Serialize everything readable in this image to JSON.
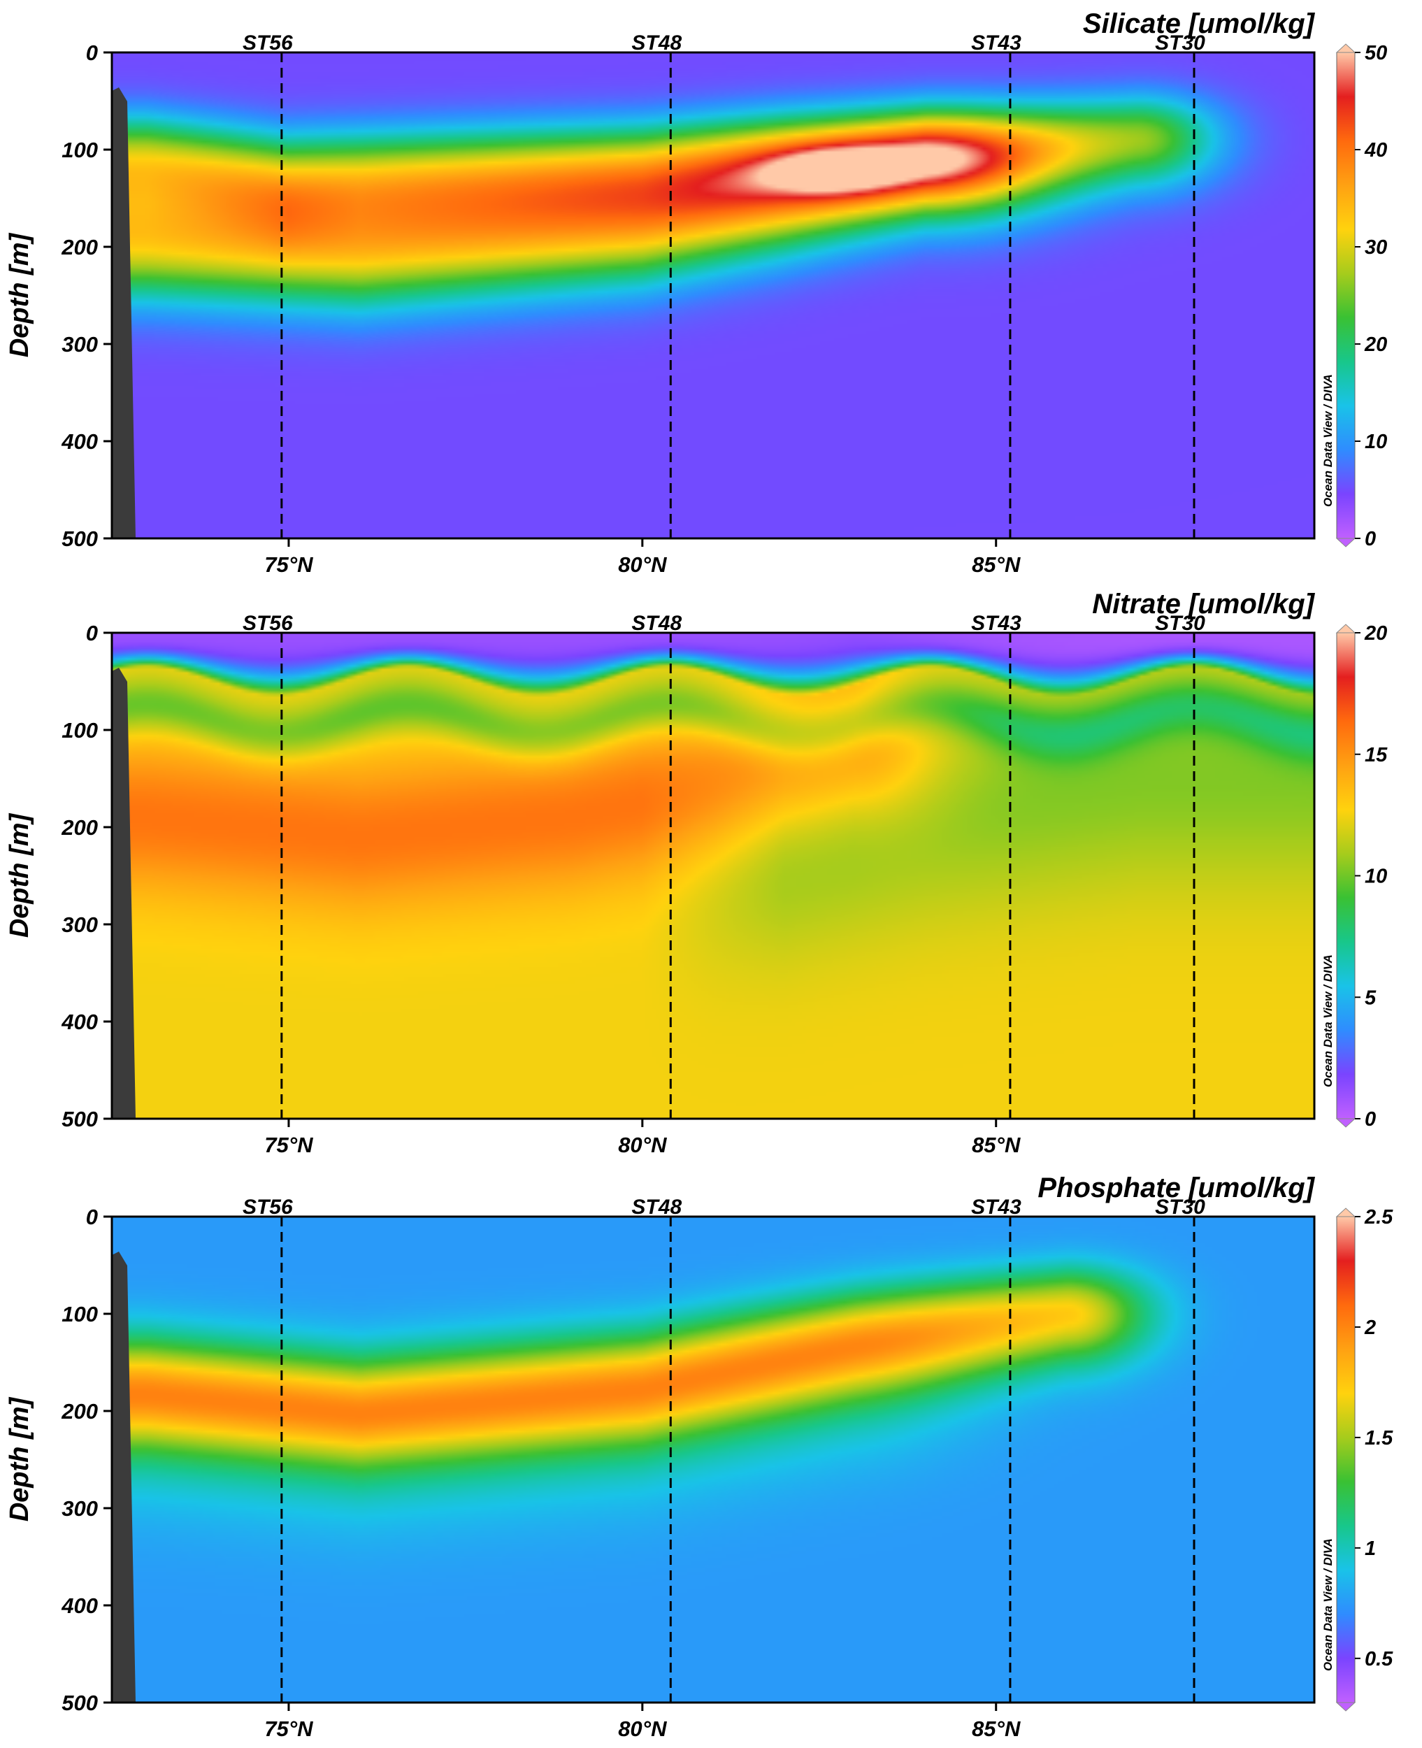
{
  "chart_data": [
    {
      "type": "heatmap",
      "title": "Silicate [umol/kg]",
      "ylabel": "Depth [m]",
      "ylim": [
        500,
        0
      ],
      "xlim": [
        72.5,
        89.5
      ],
      "y_ticks": [
        0,
        100,
        200,
        300,
        400,
        500
      ],
      "x_ticks": [
        75,
        80,
        85
      ],
      "x_tick_labels": [
        "75°N",
        "80°N",
        "85°N"
      ],
      "stations": [
        {
          "name": "ST56",
          "lat": 74.9
        },
        {
          "name": "ST48",
          "lat": 80.4
        },
        {
          "name": "ST43",
          "lat": 85.2
        },
        {
          "name": "ST30",
          "lat": 87.8
        }
      ],
      "colorbar": {
        "min": 0,
        "max": 50,
        "ticks": [
          0,
          10,
          20,
          30,
          40,
          50
        ],
        "tick_labels": [
          "0",
          "10",
          "20",
          "30",
          "40",
          "50"
        ]
      },
      "credit": "Ocean Data View / DIVA",
      "field": {
        "background": 5,
        "layers": [
          {
            "points": [
              [
                73,
                110
              ],
              [
                75,
                135
              ],
              [
                80,
                120
              ],
              [
                82,
                105
              ],
              [
                85,
                95
              ],
              [
                87,
                80
              ]
            ],
            "value": 30
          },
          {
            "points": [
              [
                73,
                195
              ],
              [
                76,
                205
              ],
              [
                80,
                180
              ],
              [
                82,
                150
              ],
              [
                84,
                115
              ]
            ],
            "value": 34
          },
          {
            "points": [
              [
                82.7,
                120
              ]
            ],
            "value": 42
          }
        ],
        "colors": [
          "#c060ff",
          "#7a44ff",
          "#2f8cff",
          "#19c3e8",
          "#18c78a",
          "#3ac133",
          "#a6cc1c",
          "#ffd20e",
          "#ffa112",
          "#ff6a0e",
          "#e41f1f",
          "#ffc9a8"
        ]
      }
    },
    {
      "type": "heatmap",
      "title": "Nitrate [umol/kg]",
      "ylabel": "Depth [m]",
      "ylim": [
        500,
        0
      ],
      "xlim": [
        72.5,
        89.5
      ],
      "y_ticks": [
        0,
        100,
        200,
        300,
        400,
        500
      ],
      "x_ticks": [
        75,
        80,
        85
      ],
      "x_tick_labels": [
        "75°N",
        "80°N",
        "85°N"
      ],
      "stations": [
        {
          "name": "ST56",
          "lat": 74.9
        },
        {
          "name": "ST48",
          "lat": 80.4
        },
        {
          "name": "ST43",
          "lat": 85.2
        },
        {
          "name": "ST30",
          "lat": 87.8
        }
      ],
      "colorbar": {
        "min": 0,
        "max": 20,
        "ticks": [
          0,
          5,
          10,
          15,
          20
        ],
        "tick_labels": [
          "0",
          "5",
          "10",
          "15",
          "20"
        ]
      },
      "credit": "Ocean Data View / DIVA",
      "field": {
        "surface": 1,
        "deep": 12.5,
        "layers": [
          {
            "points": [
              [
                73,
                190
              ],
              [
                76,
                210
              ],
              [
                79,
                190
              ],
              [
                81,
                160
              ],
              [
                83,
                120
              ]
            ],
            "value": 16
          },
          {
            "points": [
              [
                81,
                230
              ],
              [
                84,
                180
              ],
              [
                87,
                150
              ]
            ],
            "value": 10.5
          }
        ],
        "colors": [
          "#c060ff",
          "#7a44ff",
          "#2f8cff",
          "#19c3e8",
          "#18c78a",
          "#3ac133",
          "#a6cc1c",
          "#ffd20e",
          "#ffa112",
          "#ff6a0e",
          "#e41f1f",
          "#ffc9a8"
        ]
      }
    },
    {
      "type": "heatmap",
      "title": "Phosphate [umol/kg]",
      "ylabel": "Depth [m]",
      "ylim": [
        500,
        0
      ],
      "xlim": [
        72.5,
        89.5
      ],
      "y_ticks": [
        0,
        100,
        200,
        300,
        400,
        500
      ],
      "x_ticks": [
        75,
        80,
        85
      ],
      "x_tick_labels": [
        "75°N",
        "80°N",
        "85°N"
      ],
      "stations": [
        {
          "name": "ST56",
          "lat": 74.9
        },
        {
          "name": "ST48",
          "lat": 80.4
        },
        {
          "name": "ST43",
          "lat": 85.2
        },
        {
          "name": "ST30",
          "lat": 87.8
        }
      ],
      "colorbar": {
        "min": 0.3,
        "max": 2.5,
        "ticks": [
          0.5,
          1,
          1.5,
          2,
          2.5
        ],
        "tick_labels": [
          "0.5",
          "1",
          "1.5",
          "2",
          "2.5"
        ]
      },
      "credit": "Ocean Data View / DIVA",
      "field": {
        "background": 0.75,
        "layers": [
          {
            "points": [
              [
                73,
                180
              ],
              [
                76,
                200
              ],
              [
                80,
                175
              ],
              [
                83,
                130
              ],
              [
                86,
                95
              ]
            ],
            "value": 1.8
          }
        ],
        "colors": [
          "#c060ff",
          "#7a44ff",
          "#2f8cff",
          "#19c3e8",
          "#18c78a",
          "#3ac133",
          "#a6cc1c",
          "#ffd20e",
          "#ffa112",
          "#ff6a0e",
          "#e41f1f",
          "#ffc9a8"
        ]
      }
    }
  ]
}
